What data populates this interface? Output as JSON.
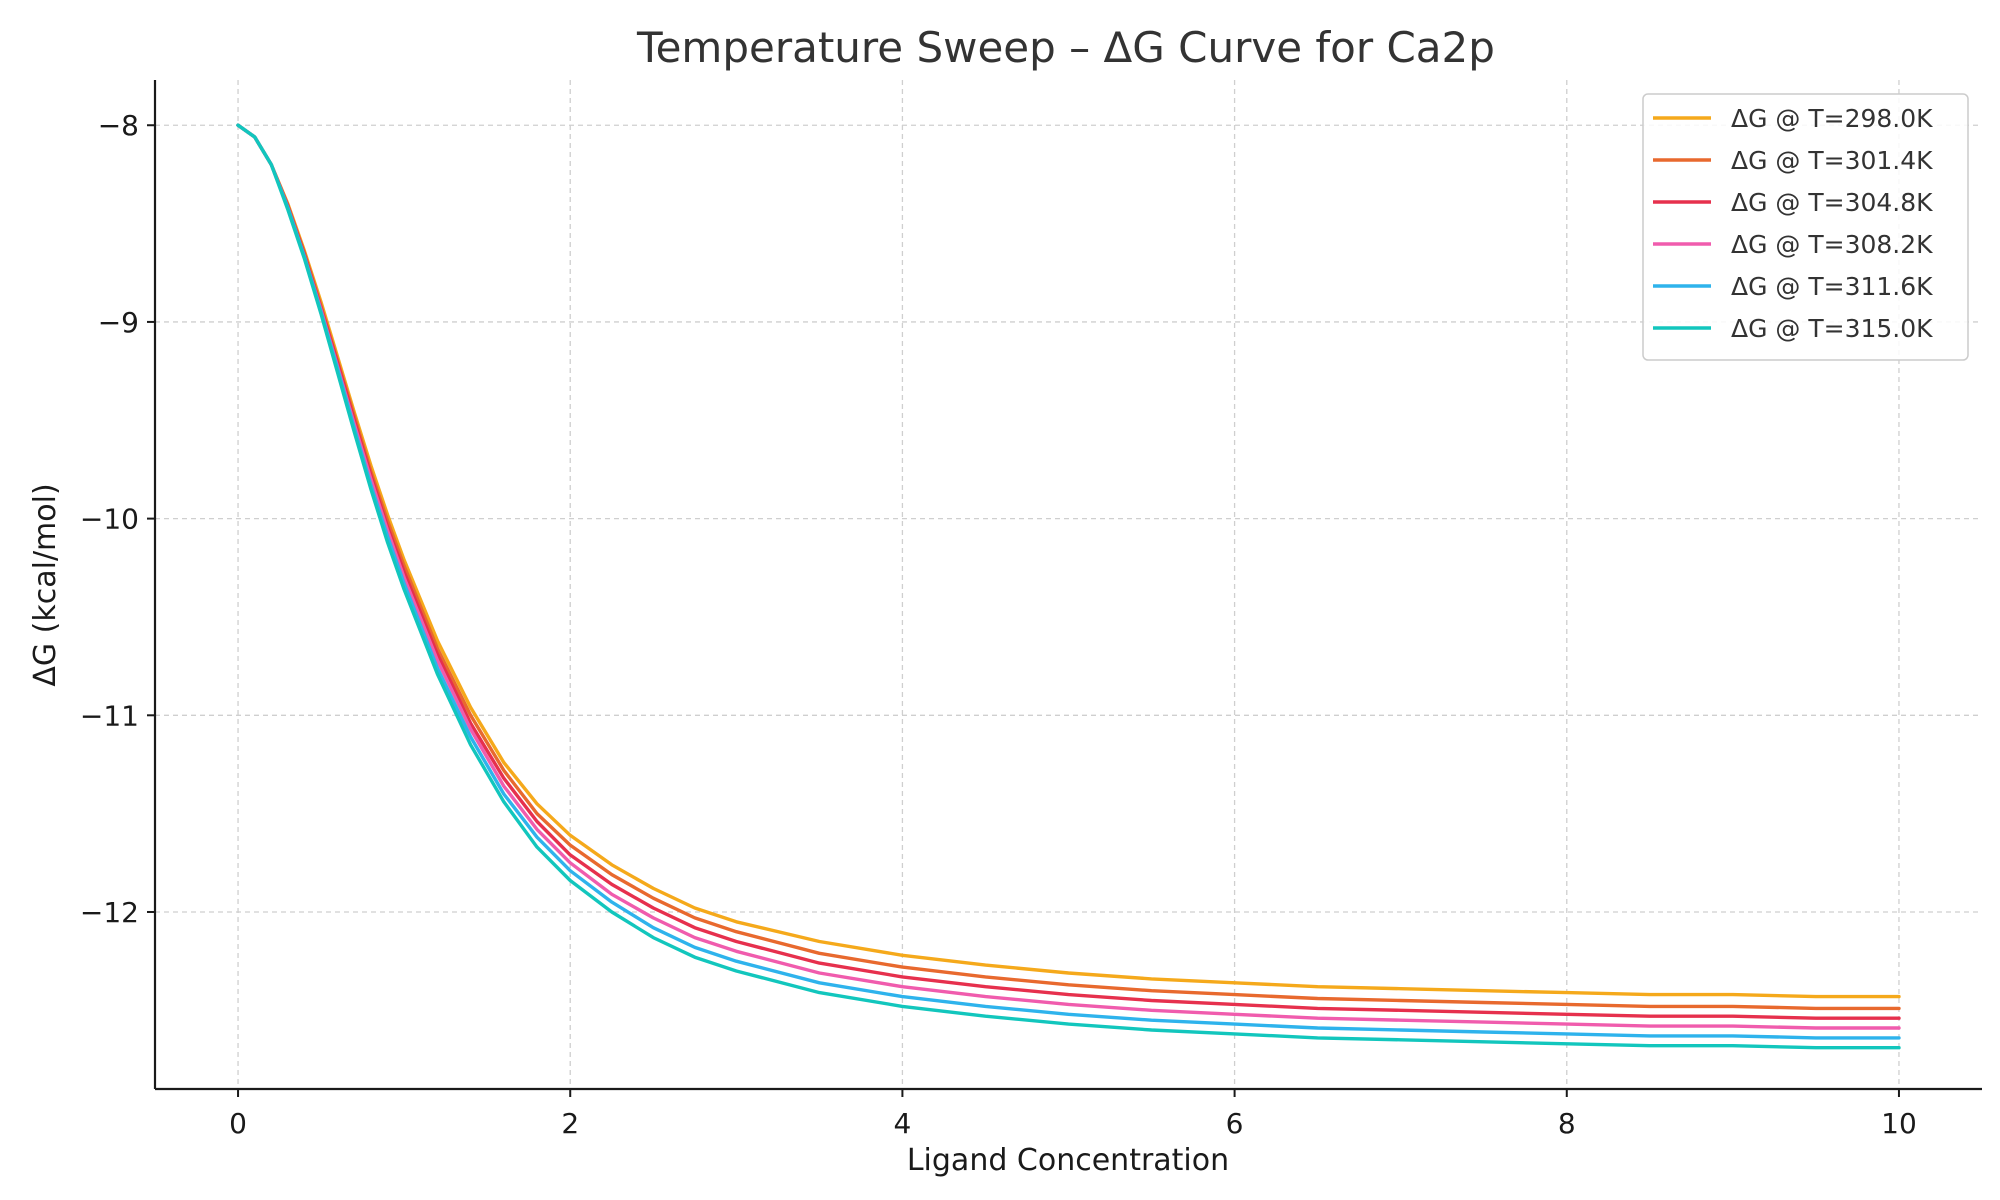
{
  "chart_data": {
    "type": "line",
    "title": "Temperature Sweep – ΔG Curve for Ca2p",
    "xlabel": "Ligand Concentration",
    "ylabel": "ΔG (kcal/mol)",
    "xlim": [
      -0.5,
      10.5
    ],
    "ylim": [
      -12.9,
      -7.77
    ],
    "xticks": [
      0,
      2,
      4,
      6,
      8,
      10
    ],
    "xtick_labels": [
      "0",
      "2",
      "4",
      "6",
      "8",
      "10"
    ],
    "yticks": [
      -8,
      -9,
      -10,
      -11,
      -12
    ],
    "ytick_labels": [
      "−8",
      "−9",
      "−10",
      "−11",
      "−12"
    ],
    "grid": true,
    "legend_position": "top-right",
    "x": [
      0,
      0.1,
      0.2,
      0.3,
      0.4,
      0.5,
      0.6,
      0.7,
      0.8,
      0.9,
      1.0,
      1.2,
      1.4,
      1.6,
      1.8,
      2.0,
      2.25,
      2.5,
      2.75,
      3.0,
      3.5,
      4.0,
      4.5,
      5.0,
      5.5,
      6.0,
      6.5,
      7.0,
      7.5,
      8.0,
      8.5,
      9.0,
      9.5,
      10.0
    ],
    "series": [
      {
        "name": "ΔG @ T=298.0K",
        "color": "#f5a91b",
        "values": [
          -8.0,
          -8.06,
          -8.2,
          -8.4,
          -8.64,
          -8.9,
          -9.18,
          -9.46,
          -9.73,
          -9.98,
          -10.21,
          -10.62,
          -10.96,
          -11.24,
          -11.45,
          -11.61,
          -11.76,
          -11.88,
          -11.98,
          -12.05,
          -12.15,
          -12.22,
          -12.27,
          -12.31,
          -12.34,
          -12.36,
          -12.38,
          -12.39,
          -12.4,
          -12.41,
          -12.42,
          -12.42,
          -12.43,
          -12.43
        ]
      },
      {
        "name": "ΔG @ T=301.4K",
        "color": "#e8692e",
        "values": [
          -8.0,
          -8.06,
          -8.2,
          -8.41,
          -8.65,
          -8.92,
          -9.2,
          -9.48,
          -9.76,
          -10.01,
          -10.24,
          -10.66,
          -11.0,
          -11.28,
          -11.5,
          -11.66,
          -11.81,
          -11.93,
          -12.03,
          -12.1,
          -12.21,
          -12.28,
          -12.33,
          -12.37,
          -12.4,
          -12.42,
          -12.44,
          -12.45,
          -12.46,
          -12.47,
          -12.48,
          -12.48,
          -12.49,
          -12.49
        ]
      },
      {
        "name": "ΔG @ T=304.8K",
        "color": "#e6304d",
        "values": [
          -8.0,
          -8.06,
          -8.2,
          -8.41,
          -8.66,
          -8.93,
          -9.21,
          -9.5,
          -9.78,
          -10.04,
          -10.27,
          -10.69,
          -11.04,
          -11.32,
          -11.54,
          -11.71,
          -11.86,
          -11.98,
          -12.08,
          -12.15,
          -12.26,
          -12.33,
          -12.38,
          -12.42,
          -12.45,
          -12.47,
          -12.49,
          -12.5,
          -12.51,
          -12.52,
          -12.53,
          -12.53,
          -12.54,
          -12.54
        ]
      },
      {
        "name": "ΔG @ T=308.2K",
        "color": "#f05cad",
        "values": [
          -8.0,
          -8.06,
          -8.2,
          -8.42,
          -8.67,
          -8.94,
          -9.23,
          -9.52,
          -9.8,
          -10.06,
          -10.3,
          -10.72,
          -11.07,
          -11.36,
          -11.58,
          -11.75,
          -11.91,
          -12.03,
          -12.13,
          -12.2,
          -12.31,
          -12.38,
          -12.43,
          -12.47,
          -12.5,
          -12.52,
          -12.54,
          -12.55,
          -12.56,
          -12.57,
          -12.58,
          -12.58,
          -12.59,
          -12.59
        ]
      },
      {
        "name": "ΔG @ T=311.6K",
        "color": "#2eb3ec",
        "values": [
          -8.0,
          -8.06,
          -8.2,
          -8.42,
          -8.67,
          -8.95,
          -9.24,
          -9.54,
          -9.83,
          -10.09,
          -10.33,
          -10.76,
          -11.11,
          -11.4,
          -11.62,
          -11.79,
          -11.95,
          -12.08,
          -12.18,
          -12.25,
          -12.36,
          -12.43,
          -12.48,
          -12.52,
          -12.55,
          -12.57,
          -12.59,
          -12.6,
          -12.61,
          -12.62,
          -12.63,
          -12.63,
          -12.64,
          -12.64
        ]
      },
      {
        "name": "ΔG @ T=315.0K",
        "color": "#12c6bd",
        "values": [
          -8.0,
          -8.06,
          -8.2,
          -8.43,
          -8.68,
          -8.96,
          -9.26,
          -9.56,
          -9.85,
          -10.12,
          -10.36,
          -10.79,
          -11.15,
          -11.44,
          -11.67,
          -11.84,
          -12.0,
          -12.13,
          -12.23,
          -12.3,
          -12.41,
          -12.48,
          -12.53,
          -12.57,
          -12.6,
          -12.62,
          -12.64,
          -12.65,
          -12.66,
          -12.67,
          -12.68,
          -12.68,
          -12.69,
          -12.69
        ]
      }
    ]
  }
}
